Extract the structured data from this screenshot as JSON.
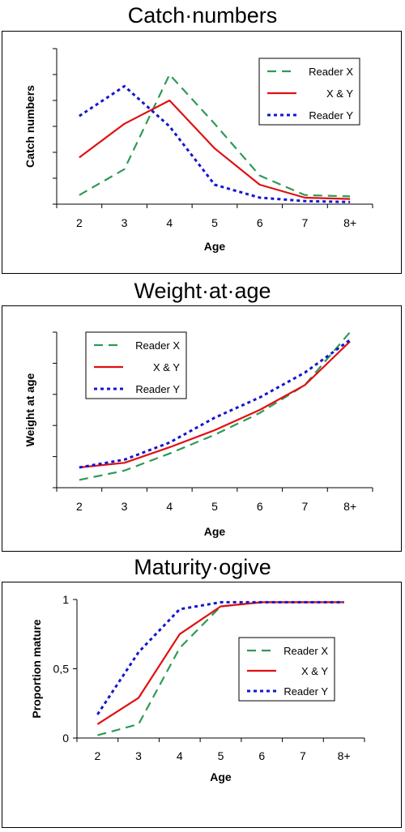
{
  "colors": {
    "reader_x": "#2e9a57",
    "x_and_y": "#e01010",
    "reader_y": "#1515d0"
  },
  "chart_data": [
    {
      "type": "line",
      "title": "Catch·numbers",
      "xlabel": "Age",
      "ylabel": "Catch numbers",
      "categories": [
        "2",
        "3",
        "4",
        "5",
        "6",
        "7",
        "8+"
      ],
      "ylim": [
        0,
        6
      ],
      "yticks": [],
      "legend_position": "top-right",
      "series": [
        {
          "name": "Reader X",
          "values": [
            0.35,
            1.35,
            5.0,
            3.1,
            1.1,
            0.35,
            0.3
          ]
        },
        {
          "name": "X & Y",
          "values": [
            1.8,
            3.1,
            4.0,
            2.15,
            0.75,
            0.25,
            0.2
          ]
        },
        {
          "name": "Reader Y",
          "values": [
            3.4,
            4.55,
            3.0,
            0.75,
            0.25,
            0.12,
            0.08
          ]
        }
      ]
    },
    {
      "type": "line",
      "title": "Weight·at·age",
      "xlabel": "Age",
      "ylabel": "Weight at age",
      "categories": [
        "2",
        "3",
        "4",
        "5",
        "6",
        "7",
        "8+"
      ],
      "ylim": [
        0,
        5
      ],
      "yticks": [],
      "legend_position": "top-left",
      "series": [
        {
          "name": "Reader X",
          "values": [
            0.25,
            0.55,
            1.1,
            1.7,
            2.4,
            3.3,
            5.0
          ]
        },
        {
          "name": "X & Y",
          "values": [
            0.65,
            0.8,
            1.3,
            1.85,
            2.5,
            3.3,
            4.7
          ]
        },
        {
          "name": "Reader Y",
          "values": [
            0.65,
            0.9,
            1.45,
            2.25,
            2.9,
            3.7,
            4.75
          ]
        }
      ]
    },
    {
      "type": "line",
      "title": "Maturity·ogive",
      "xlabel": "Age",
      "ylabel": "Proportion mature",
      "categories": [
        "2",
        "3",
        "4",
        "5",
        "6",
        "7",
        "8+"
      ],
      "ylim": [
        0,
        1
      ],
      "yticks": [
        "0",
        "0,5",
        "1"
      ],
      "legend_position": "center-right",
      "series": [
        {
          "name": "Reader X",
          "values": [
            0.02,
            0.1,
            0.65,
            0.95,
            0.98,
            0.98,
            0.98
          ]
        },
        {
          "name": "X & Y",
          "values": [
            0.1,
            0.29,
            0.75,
            0.95,
            0.98,
            0.98,
            0.98
          ]
        },
        {
          "name": "Reader Y",
          "values": [
            0.17,
            0.62,
            0.93,
            0.98,
            0.98,
            0.98,
            0.98
          ]
        }
      ]
    }
  ]
}
